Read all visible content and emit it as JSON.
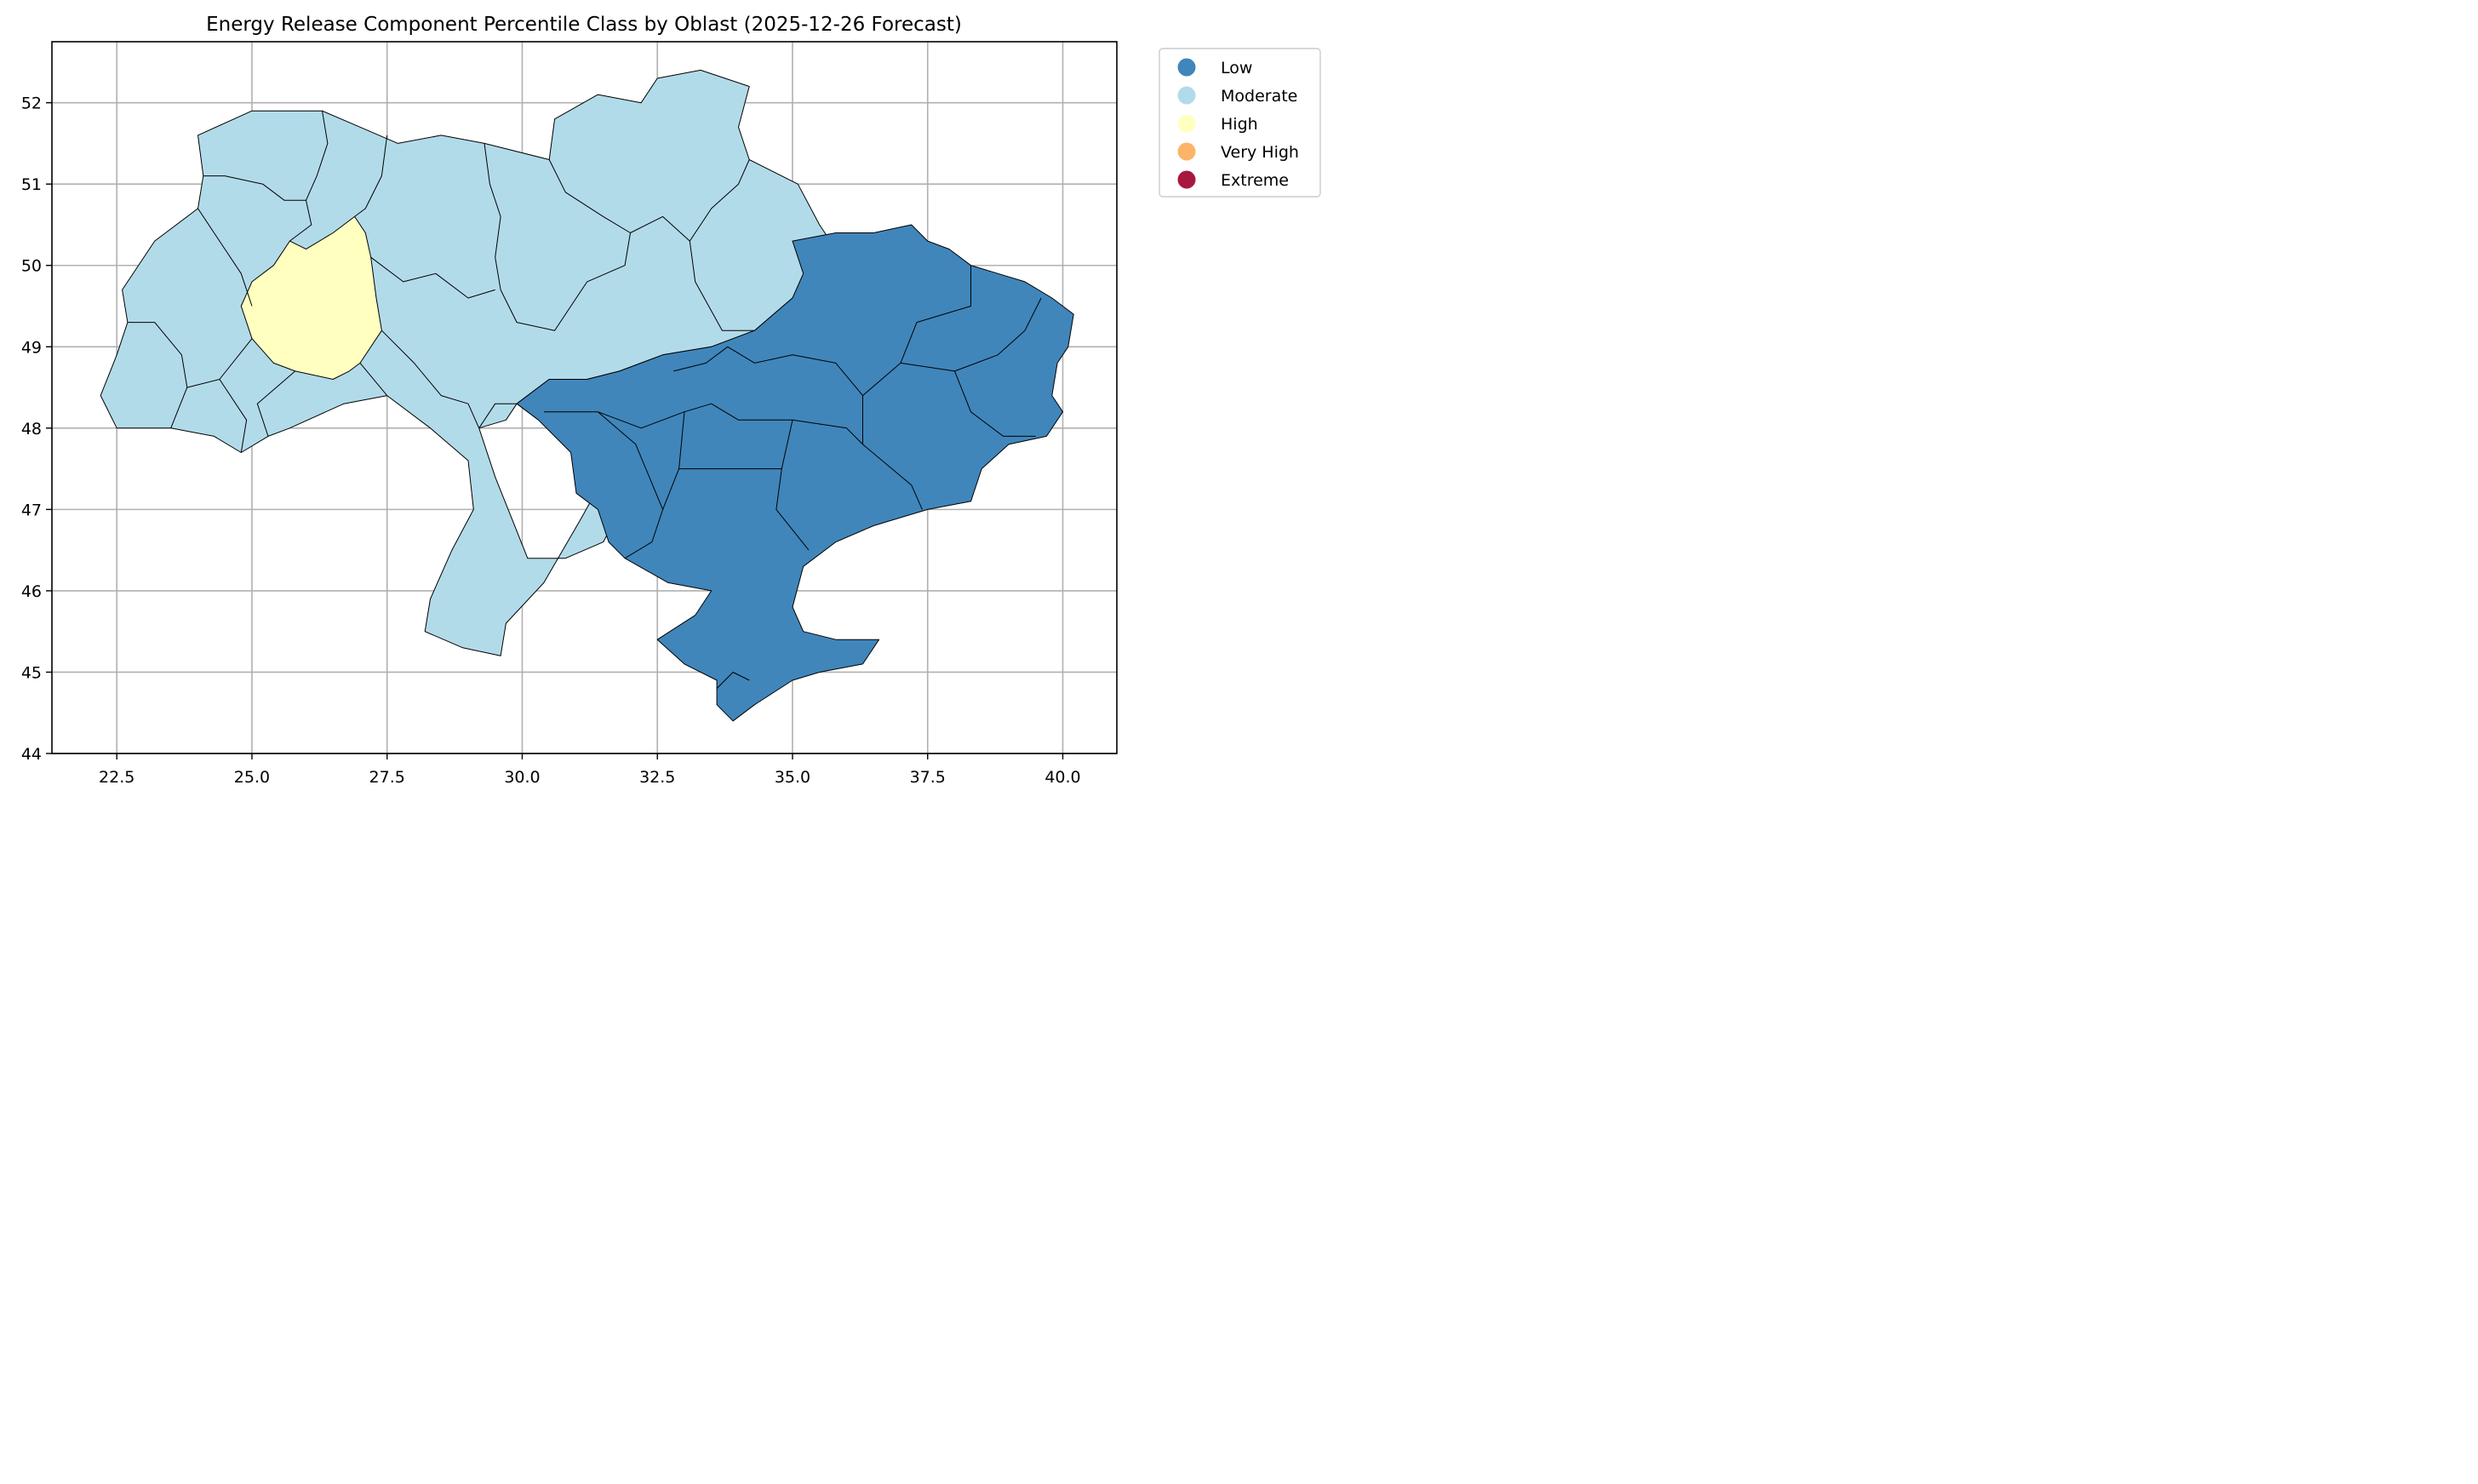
{
  "chart_data": {
    "type": "choropleth",
    "title": "Energy Release Component Percentile Class by Oblast (2025-12-26 Forecast)",
    "xlabel": "",
    "ylabel": "",
    "xlim": [
      21.3,
      41.0
    ],
    "ylim": [
      44.0,
      52.75
    ],
    "x_ticks": [
      "22.5",
      "25.0",
      "27.5",
      "30.0",
      "32.5",
      "35.0",
      "37.5",
      "40.0"
    ],
    "y_ticks": [
      "44",
      "45",
      "46",
      "47",
      "48",
      "49",
      "50",
      "51",
      "52"
    ],
    "grid": true,
    "legend_position": "outside-top-right",
    "legend": [
      {
        "label": "Low",
        "color": "#4086bb"
      },
      {
        "label": "Moderate",
        "color": "#b2dbe9"
      },
      {
        "label": "High",
        "color": "#ffffc0"
      },
      {
        "label": "Very High",
        "color": "#fcb468"
      },
      {
        "label": "Extreme",
        "color": "#a7183e"
      }
    ],
    "regions": [
      {
        "class": "Moderate",
        "outline": [
          [
            24.0,
            51.6
          ],
          [
            25.0,
            51.9
          ],
          [
            26.3,
            51.9
          ],
          [
            27.0,
            51.7
          ],
          [
            27.7,
            51.5
          ],
          [
            28.5,
            51.6
          ],
          [
            29.3,
            51.5
          ],
          [
            30.5,
            51.3
          ],
          [
            30.6,
            51.8
          ],
          [
            31.4,
            52.1
          ],
          [
            32.2,
            52.0
          ],
          [
            32.5,
            52.3
          ],
          [
            33.3,
            52.4
          ],
          [
            34.2,
            52.2
          ],
          [
            34.0,
            51.7
          ],
          [
            34.2,
            51.3
          ],
          [
            35.1,
            51.0
          ],
          [
            35.5,
            50.5
          ],
          [
            35.8,
            50.2
          ],
          [
            35.6,
            49.9
          ],
          [
            35.0,
            49.6
          ],
          [
            34.3,
            49.2
          ],
          [
            33.5,
            49.0
          ],
          [
            32.6,
            48.9
          ],
          [
            31.8,
            48.7
          ],
          [
            31.2,
            48.6
          ],
          [
            30.5,
            48.6
          ],
          [
            29.9,
            48.3
          ],
          [
            29.7,
            48.1
          ],
          [
            29.2,
            48.0
          ],
          [
            29.5,
            47.4
          ],
          [
            29.8,
            46.9
          ],
          [
            30.1,
            46.4
          ],
          [
            30.8,
            46.4
          ],
          [
            31.5,
            46.6
          ],
          [
            31.9,
            47.1
          ],
          [
            31.6,
            47.5
          ],
          [
            31.1,
            46.9
          ],
          [
            30.4,
            46.1
          ],
          [
            29.7,
            45.6
          ],
          [
            29.6,
            45.2
          ],
          [
            28.9,
            45.3
          ],
          [
            28.2,
            45.5
          ],
          [
            28.3,
            45.9
          ],
          [
            28.7,
            46.5
          ],
          [
            29.1,
            47.0
          ],
          [
            29.0,
            47.6
          ],
          [
            28.3,
            48.0
          ],
          [
            27.5,
            48.4
          ],
          [
            26.7,
            48.3
          ],
          [
            25.7,
            48.0
          ],
          [
            25.3,
            47.9
          ],
          [
            24.8,
            47.7
          ],
          [
            24.3,
            47.9
          ],
          [
            23.5,
            48.0
          ],
          [
            22.5,
            48.0
          ],
          [
            22.2,
            48.4
          ],
          [
            22.5,
            48.9
          ],
          [
            22.7,
            49.3
          ],
          [
            22.6,
            49.7
          ],
          [
            23.2,
            50.3
          ],
          [
            24.0,
            50.7
          ],
          [
            24.1,
            51.1
          ]
        ]
      },
      {
        "class": "High",
        "outline": [
          [
            25.7,
            50.3
          ],
          [
            26.0,
            50.2
          ],
          [
            26.5,
            50.4
          ],
          [
            26.9,
            50.6
          ],
          [
            27.1,
            50.4
          ],
          [
            27.2,
            50.1
          ],
          [
            27.3,
            49.6
          ],
          [
            27.4,
            49.2
          ],
          [
            27.0,
            48.8
          ],
          [
            26.8,
            48.7
          ],
          [
            26.5,
            48.6
          ],
          [
            25.8,
            48.7
          ],
          [
            25.4,
            48.8
          ],
          [
            25.0,
            49.1
          ],
          [
            24.8,
            49.5
          ],
          [
            25.0,
            49.8
          ],
          [
            25.4,
            50.0
          ]
        ]
      },
      {
        "class": "Low",
        "outline": [
          [
            35.0,
            50.3
          ],
          [
            35.8,
            50.4
          ],
          [
            36.5,
            50.4
          ],
          [
            37.2,
            50.5
          ],
          [
            37.5,
            50.3
          ],
          [
            37.9,
            50.2
          ],
          [
            38.3,
            50.0
          ],
          [
            38.8,
            49.9
          ],
          [
            39.3,
            49.8
          ],
          [
            39.8,
            49.6
          ],
          [
            40.2,
            49.4
          ],
          [
            40.1,
            49.0
          ],
          [
            39.9,
            48.8
          ],
          [
            39.8,
            48.4
          ],
          [
            40.0,
            48.2
          ],
          [
            39.7,
            47.9
          ],
          [
            39.0,
            47.8
          ],
          [
            38.5,
            47.5
          ],
          [
            38.3,
            47.1
          ],
          [
            37.5,
            47.0
          ],
          [
            37.0,
            46.9
          ],
          [
            36.5,
            46.8
          ],
          [
            35.8,
            46.6
          ],
          [
            35.2,
            46.3
          ],
          [
            35.0,
            45.8
          ],
          [
            35.2,
            45.5
          ],
          [
            35.8,
            45.4
          ],
          [
            36.6,
            45.4
          ],
          [
            36.3,
            45.1
          ],
          [
            35.5,
            45.0
          ],
          [
            35.0,
            44.9
          ],
          [
            34.3,
            44.6
          ],
          [
            33.9,
            44.4
          ],
          [
            33.6,
            44.6
          ],
          [
            33.6,
            44.9
          ],
          [
            33.0,
            45.1
          ],
          [
            32.5,
            45.4
          ],
          [
            33.2,
            45.7
          ],
          [
            33.5,
            46.0
          ],
          [
            32.7,
            46.1
          ],
          [
            31.9,
            46.4
          ],
          [
            31.6,
            46.6
          ],
          [
            31.4,
            47.0
          ],
          [
            31.0,
            47.2
          ],
          [
            30.9,
            47.7
          ],
          [
            30.3,
            48.1
          ],
          [
            29.9,
            48.3
          ],
          [
            30.5,
            48.6
          ],
          [
            31.2,
            48.6
          ],
          [
            31.8,
            48.7
          ],
          [
            32.6,
            48.9
          ],
          [
            33.5,
            49.0
          ],
          [
            34.3,
            49.2
          ],
          [
            35.0,
            49.6
          ],
          [
            35.2,
            49.9
          ]
        ]
      }
    ],
    "borders": [
      [
        [
          26.3,
          51.9
        ],
        [
          26.4,
          51.5
        ],
        [
          26.2,
          51.1
        ],
        [
          26.0,
          50.8
        ],
        [
          26.1,
          50.5
        ],
        [
          25.7,
          50.3
        ]
      ],
      [
        [
          24.1,
          51.1
        ],
        [
          24.5,
          51.1
        ],
        [
          25.2,
          51.0
        ],
        [
          25.6,
          50.8
        ],
        [
          26.0,
          50.8
        ]
      ],
      [
        [
          24.0,
          50.7
        ],
        [
          24.4,
          50.3
        ],
        [
          24.8,
          49.9
        ],
        [
          25.0,
          49.5
        ]
      ],
      [
        [
          27.5,
          51.6
        ],
        [
          27.4,
          51.1
        ],
        [
          27.1,
          50.7
        ],
        [
          26.9,
          50.6
        ]
      ],
      [
        [
          27.2,
          50.1
        ],
        [
          27.8,
          49.8
        ],
        [
          28.4,
          49.9
        ],
        [
          29.0,
          49.6
        ],
        [
          29.5,
          49.7
        ]
      ],
      [
        [
          29.3,
          51.5
        ],
        [
          29.4,
          51.0
        ],
        [
          29.6,
          50.6
        ],
        [
          29.5,
          50.1
        ],
        [
          29.6,
          49.7
        ]
      ],
      [
        [
          30.5,
          51.3
        ],
        [
          30.8,
          50.9
        ],
        [
          31.5,
          50.6
        ],
        [
          32.0,
          50.4
        ],
        [
          32.6,
          50.6
        ],
        [
          33.1,
          50.3
        ],
        [
          33.5,
          50.7
        ],
        [
          34.0,
          51.0
        ],
        [
          34.2,
          51.3
        ]
      ],
      [
        [
          32.0,
          50.4
        ],
        [
          31.9,
          50.0
        ],
        [
          31.2,
          49.8
        ],
        [
          30.6,
          49.2
        ],
        [
          29.9,
          49.3
        ],
        [
          29.6,
          49.7
        ]
      ],
      [
        [
          33.1,
          50.3
        ],
        [
          33.2,
          49.8
        ],
        [
          33.7,
          49.2
        ],
        [
          34.3,
          49.2
        ]
      ],
      [
        [
          29.2,
          48.0
        ],
        [
          29.5,
          48.3
        ],
        [
          29.9,
          48.3
        ]
      ],
      [
        [
          23.5,
          48.0
        ],
        [
          23.8,
          48.5
        ],
        [
          23.7,
          48.9
        ],
        [
          23.2,
          49.3
        ],
        [
          22.7,
          49.3
        ]
      ],
      [
        [
          23.8,
          48.5
        ],
        [
          24.4,
          48.6
        ],
        [
          25.0,
          49.1
        ]
      ],
      [
        [
          25.3,
          47.9
        ],
        [
          25.1,
          48.3
        ],
        [
          25.8,
          48.7
        ]
      ],
      [
        [
          24.8,
          47.7
        ],
        [
          24.9,
          48.1
        ],
        [
          24.4,
          48.6
        ]
      ],
      [
        [
          27.0,
          48.8
        ],
        [
          27.5,
          48.4
        ]
      ],
      [
        [
          27.4,
          49.2
        ],
        [
          28.0,
          48.8
        ],
        [
          28.5,
          48.4
        ],
        [
          29.0,
          48.3
        ],
        [
          29.2,
          48.0
        ]
      ],
      [
        [
          30.4,
          48.2
        ],
        [
          31.4,
          48.2
        ],
        [
          32.2,
          48.0
        ],
        [
          33.0,
          48.2
        ],
        [
          33.5,
          48.3
        ],
        [
          34.0,
          48.1
        ],
        [
          35.0,
          48.1
        ],
        [
          36.0,
          48.0
        ],
        [
          36.3,
          47.8
        ]
      ],
      [
        [
          36.3,
          47.8
        ],
        [
          36.3,
          48.4
        ],
        [
          37.0,
          48.8
        ],
        [
          37.3,
          49.3
        ],
        [
          38.3,
          49.5
        ],
        [
          38.3,
          50.0
        ]
      ],
      [
        [
          36.3,
          48.4
        ],
        [
          35.8,
          48.8
        ],
        [
          35.0,
          48.9
        ],
        [
          34.3,
          48.8
        ],
        [
          33.8,
          49.0
        ],
        [
          33.4,
          48.8
        ],
        [
          32.8,
          48.7
        ]
      ],
      [
        [
          37.0,
          48.8
        ],
        [
          38.0,
          48.7
        ],
        [
          38.8,
          48.9
        ],
        [
          39.3,
          49.2
        ],
        [
          39.6,
          49.6
        ]
      ],
      [
        [
          38.0,
          48.7
        ],
        [
          38.3,
          48.2
        ],
        [
          38.9,
          47.9
        ],
        [
          39.5,
          47.9
        ]
      ],
      [
        [
          36.3,
          47.8
        ],
        [
          37.2,
          47.3
        ],
        [
          37.4,
          47.0
        ]
      ],
      [
        [
          33.0,
          48.2
        ],
        [
          32.9,
          47.5
        ],
        [
          33.7,
          47.5
        ],
        [
          34.8,
          47.5
        ],
        [
          34.7,
          47.0
        ],
        [
          35.3,
          46.5
        ]
      ],
      [
        [
          32.9,
          47.5
        ],
        [
          32.6,
          47.0
        ],
        [
          32.4,
          46.6
        ],
        [
          31.9,
          46.4
        ]
      ],
      [
        [
          34.8,
          47.5
        ],
        [
          35.0,
          48.1
        ]
      ],
      [
        [
          31.4,
          48.2
        ],
        [
          32.1,
          47.8
        ],
        [
          32.6,
          47.0
        ]
      ],
      [
        [
          33.6,
          44.8
        ],
        [
          33.9,
          45.0
        ],
        [
          34.2,
          44.9
        ]
      ]
    ]
  }
}
